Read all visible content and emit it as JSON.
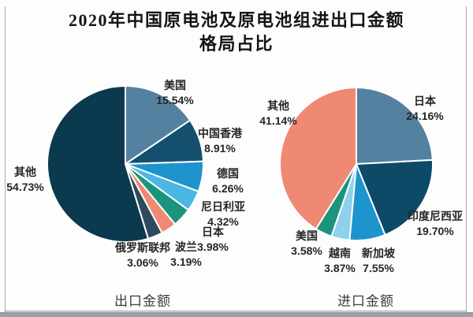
{
  "title": {
    "line1": "2020年中国原电池及原电池组进出口金额",
    "line2": "格局占比"
  },
  "chart_data": [
    {
      "type": "pie",
      "caption": "出口金额",
      "start_angle_deg": 0,
      "direction": "clockwise",
      "slices": [
        {
          "label": "美国",
          "value": 15.54,
          "pct_label": "15.54%",
          "color": "#54819f"
        },
        {
          "label": "中国香港",
          "value": 8.91,
          "pct_label": "8.91%",
          "color": "#14506e"
        },
        {
          "label": "德国",
          "value": 6.26,
          "pct_label": "6.26%",
          "color": "#1e94cd"
        },
        {
          "label": "尼日利亚",
          "value": 4.32,
          "pct_label": "4.32%",
          "color": "#4cb6e5"
        },
        {
          "label": "日本",
          "value": 3.98,
          "pct_label": "3.98%",
          "color": "#1b947e"
        },
        {
          "label": "波兰",
          "value": 3.19,
          "pct_label": "3.19%",
          "color": "#ef8973"
        },
        {
          "label": "俄罗斯联邦",
          "value": 3.06,
          "pct_label": "3.06%",
          "color": "#2e4a5c"
        },
        {
          "label": "其他",
          "value": 54.73,
          "pct_label": "54.73%",
          "color": "#0b3a4e"
        }
      ]
    },
    {
      "type": "pie",
      "caption": "进口金额",
      "start_angle_deg": 0,
      "direction": "clockwise",
      "slices": [
        {
          "label": "日本",
          "value": 24.16,
          "pct_label": "24.16%",
          "color": "#54819f"
        },
        {
          "label": "印度尼西亚",
          "value": 19.7,
          "pct_label": "19.70%",
          "color": "#0d4a68"
        },
        {
          "label": "新加坡",
          "value": 7.55,
          "pct_label": "7.55%",
          "color": "#1e94cd"
        },
        {
          "label": "越南",
          "value": 3.87,
          "pct_label": "3.87%",
          "color": "#8fd0ef"
        },
        {
          "label": "美国",
          "value": 3.58,
          "pct_label": "3.58%",
          "color": "#1b947e"
        },
        {
          "label": "其他",
          "value": 41.14,
          "pct_label": "41.14%",
          "color": "#ef8973"
        }
      ]
    }
  ],
  "colors": {
    "background": "#fdfdfd",
    "frame_border": "#ababab",
    "bottom_bar": "#9aa1a8",
    "title_text": "#141414",
    "label_text": "#262626",
    "slice_separator": "#ffffff"
  }
}
